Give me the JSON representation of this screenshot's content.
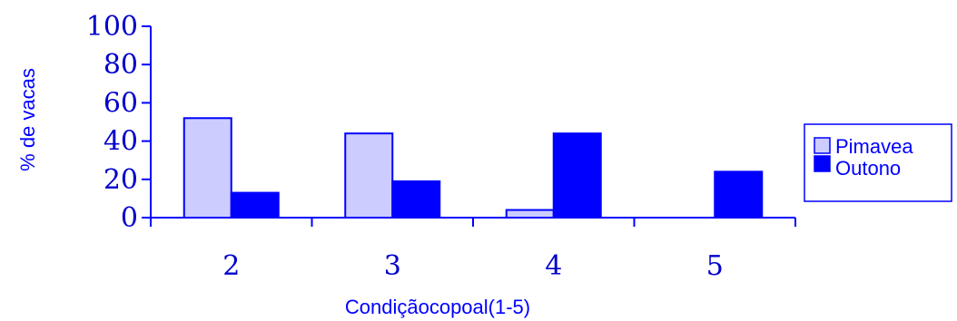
{
  "chart_data": {
    "type": "bar",
    "xlabel": "Condiçãocopoal(1-5)",
    "ylabel": "% de vacas",
    "categories": [
      "2",
      "3",
      "4",
      "5"
    ],
    "ylim": [
      0,
      100
    ],
    "yticks": [
      "0",
      "20",
      "40",
      "60",
      "80",
      "100"
    ],
    "series": [
      {
        "name": "Pimavea",
        "values": [
          52,
          44,
          4,
          0
        ],
        "color": "#ccccff",
        "stroke": "#0000ff"
      },
      {
        "name": "Outono",
        "values": [
          13,
          19,
          44,
          24
        ],
        "color": "#0000ff",
        "stroke": "#0000ff"
      }
    ],
    "legend_position": "right",
    "grid": false,
    "axis_color": "#0000ff"
  }
}
